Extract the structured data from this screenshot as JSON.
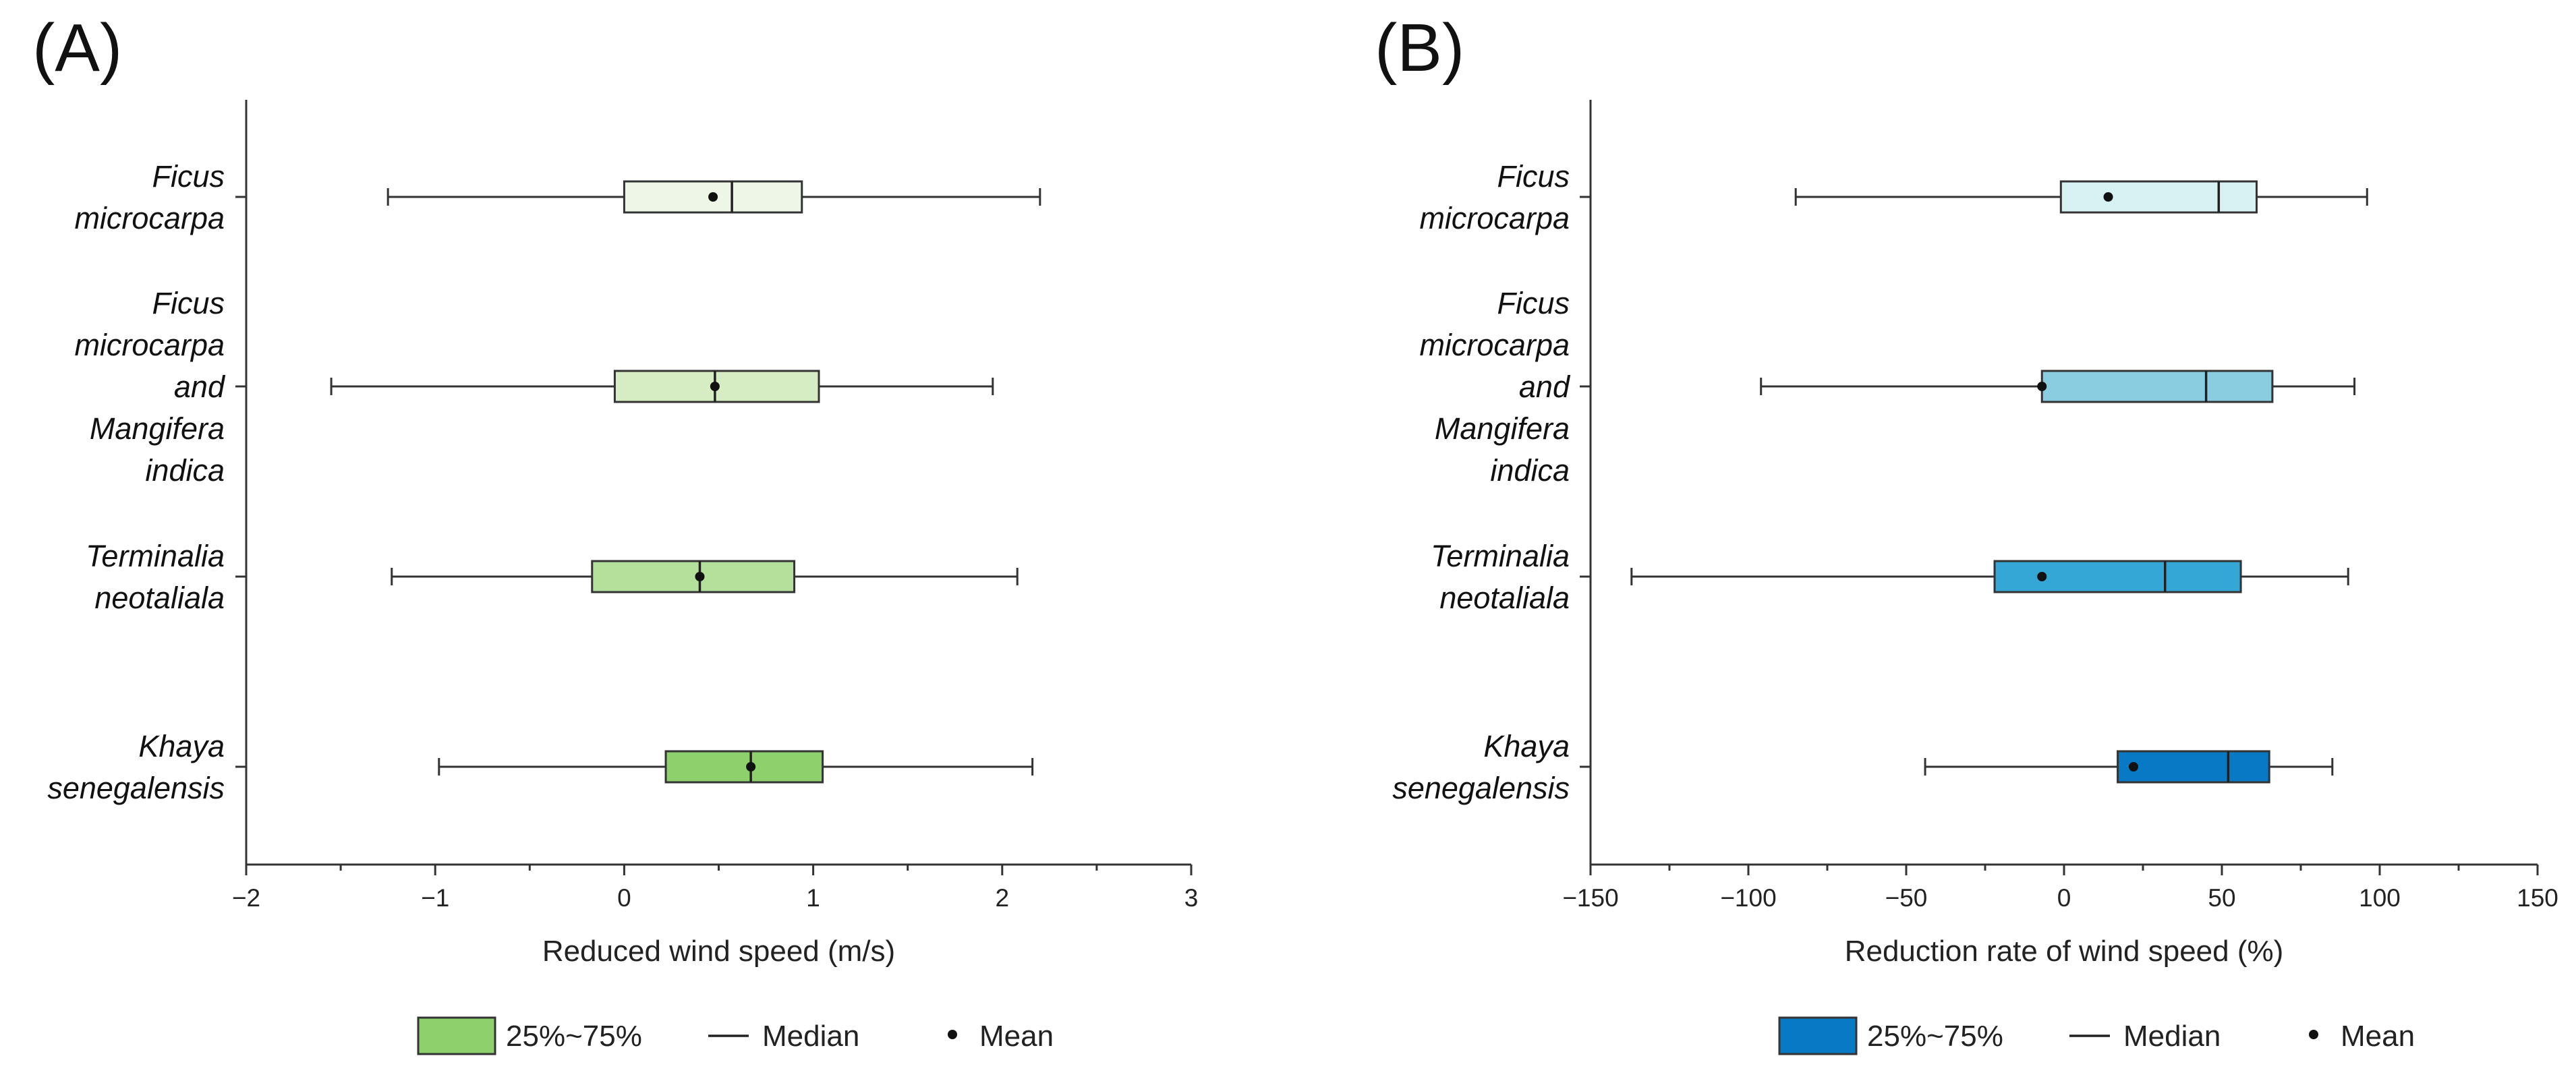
{
  "chart_data": [
    {
      "type": "boxplot",
      "orientation": "horizontal",
      "panel_label": "(A)",
      "xlabel": "Reduced wind speed (m/s)",
      "xlim": [
        -2,
        3
      ],
      "xticks": [
        -2,
        -1,
        0,
        1,
        2,
        3
      ],
      "xtick_labels": [
        "−2",
        "−1",
        "0",
        "1",
        "2",
        "3"
      ],
      "categories": [
        {
          "lines": [
            "Ficus",
            "microcarpa"
          ]
        },
        {
          "lines": [
            "Ficus",
            "microcarpa",
            "and",
            "Mangifera",
            "indica"
          ]
        },
        {
          "lines": [
            "Terminalia",
            "neotaliala"
          ]
        },
        {
          "lines": [
            "Khaya",
            "senegalensis"
          ]
        }
      ],
      "series": [
        {
          "category": "Ficus microcarpa",
          "whisker_low": -1.25,
          "q1": 0.0,
          "median": 0.57,
          "q3": 0.94,
          "whisker_high": 2.2,
          "mean": 0.47,
          "color": "#eef6e8"
        },
        {
          "category": "Ficus microcarpa and Mangifera indica",
          "whisker_low": -1.55,
          "q1": -0.05,
          "median": 0.48,
          "q3": 1.03,
          "whisker_high": 1.95,
          "mean": 0.48,
          "color": "#d6edc4"
        },
        {
          "category": "Terminalia neotaliala",
          "whisker_low": -1.23,
          "q1": -0.17,
          "median": 0.4,
          "q3": 0.9,
          "whisker_high": 2.08,
          "mean": 0.4,
          "color": "#b4e09c"
        },
        {
          "category": "Khaya senegalensis",
          "whisker_low": -0.98,
          "q1": 0.22,
          "median": 0.67,
          "q3": 1.05,
          "whisker_high": 2.16,
          "mean": 0.67,
          "color": "#8ed06c"
        }
      ],
      "legend": {
        "box_label": "25%~75%",
        "median_label": "Median",
        "mean_label": "Mean",
        "box_color": "#8ed06c"
      }
    },
    {
      "type": "boxplot",
      "orientation": "horizontal",
      "panel_label": "(B)",
      "xlabel": "Reduction rate of wind speed (%)",
      "xlim": [
        -150,
        150
      ],
      "xticks": [
        -150,
        -100,
        -50,
        0,
        50,
        100,
        150
      ],
      "xtick_labels": [
        "−150",
        "−100",
        "−50",
        "0",
        "50",
        "100",
        "150"
      ],
      "categories": [
        {
          "lines": [
            "Ficus",
            "microcarpa"
          ]
        },
        {
          "lines": [
            "Ficus",
            "microcarpa",
            "and",
            "Mangifera",
            "indica"
          ]
        },
        {
          "lines": [
            "Terminalia",
            "neotaliala"
          ]
        },
        {
          "lines": [
            "Khaya",
            "senegalensis"
          ]
        }
      ],
      "series": [
        {
          "category": "Ficus microcarpa",
          "whisker_low": -85,
          "q1": -1,
          "median": 49,
          "q3": 61,
          "whisker_high": 96,
          "mean": 14,
          "color": "#d7f2f3"
        },
        {
          "category": "Ficus microcarpa and Mangifera indica",
          "whisker_low": -96,
          "q1": -7,
          "median": 45,
          "q3": 66,
          "whisker_high": 92,
          "mean": -7,
          "color": "#8acce0"
        },
        {
          "category": "Terminalia neotaliala",
          "whisker_low": -137,
          "q1": -22,
          "median": 32,
          "q3": 56,
          "whisker_high": 90,
          "mean": -7,
          "color": "#34a7d6"
        },
        {
          "category": "Khaya senegalensis",
          "whisker_low": -44,
          "q1": 17,
          "median": 52,
          "q3": 65,
          "whisker_high": 85,
          "mean": 22,
          "color": "#0879c5"
        }
      ],
      "legend": {
        "box_label": "25%~75%",
        "median_label": "Median",
        "mean_label": "Mean",
        "box_color": "#0879c5"
      }
    }
  ]
}
